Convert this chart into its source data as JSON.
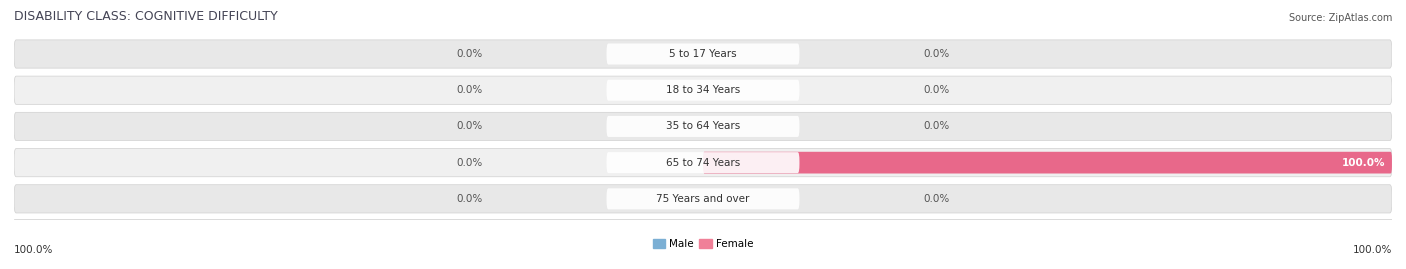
{
  "title": "DISABILITY CLASS: COGNITIVE DIFFICULTY",
  "source": "Source: ZipAtlas.com",
  "categories": [
    "5 to 17 Years",
    "18 to 34 Years",
    "35 to 64 Years",
    "65 to 74 Years",
    "75 Years and over"
  ],
  "male_values": [
    0.0,
    0.0,
    0.0,
    0.0,
    0.0
  ],
  "female_values": [
    0.0,
    0.0,
    0.0,
    100.0,
    0.0
  ],
  "male_left_labels": [
    "0.0%",
    "0.0%",
    "0.0%",
    "0.0%",
    "0.0%"
  ],
  "female_right_labels": [
    "0.0%",
    "0.0%",
    "0.0%",
    "100.0%",
    "0.0%"
  ],
  "male_color": "#a8bcd8",
  "female_color": "#f0a0b8",
  "female_color_strong": "#e8688a",
  "bar_bg_color": "#e8e8e8",
  "bar_bg_color2": "#f0f0f0",
  "bar_outline_color": "#d0d0d0",
  "male_legend_color": "#7bafd4",
  "female_legend_color": "#f08098",
  "left_axis_label": "100.0%",
  "right_axis_label": "100.0%",
  "title_fontsize": 9,
  "label_fontsize": 7.5,
  "tick_fontsize": 7.5,
  "source_fontsize": 7,
  "cat_label_fontsize": 7.5
}
